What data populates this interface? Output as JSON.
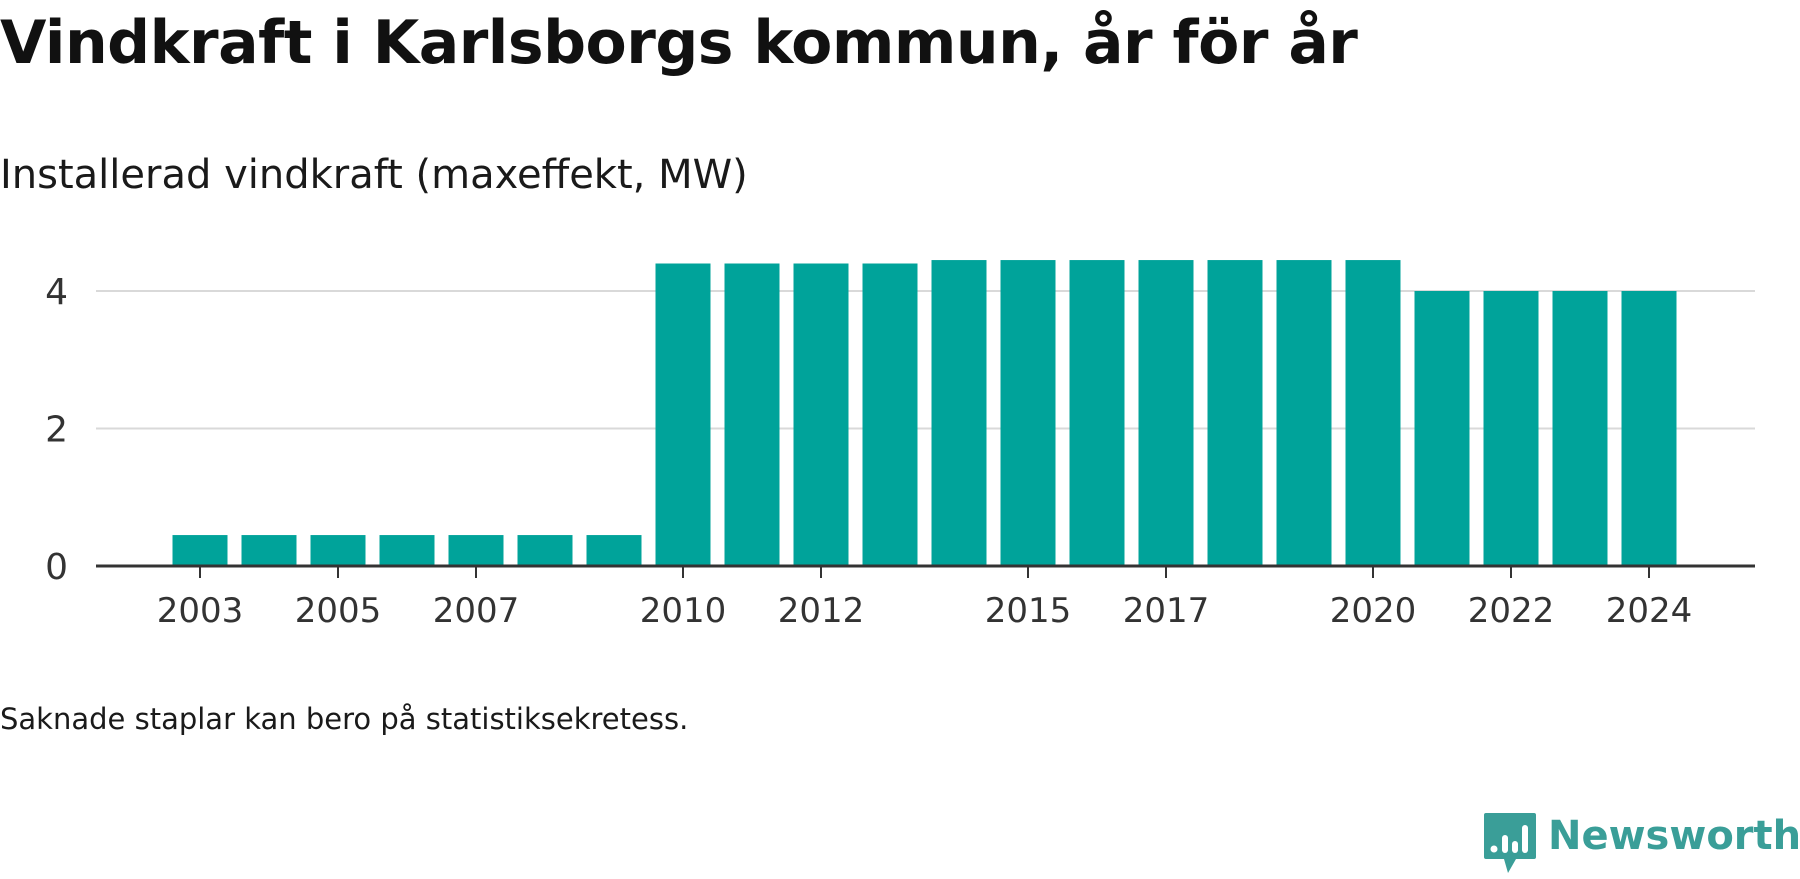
{
  "header": {
    "title": "Vindkraft i Karlsborgs kommun, år för år",
    "subtitle": "Installerad vindkraft (maxeffekt, MW)"
  },
  "footer": {
    "note": "Saknade staplar kan bero på statistiksekretess.",
    "brand": "Newsworthy"
  },
  "colors": {
    "bar": "#00a39a",
    "grid": "#d9d9d9",
    "axis": "#333333",
    "brand": "#3a9e98"
  },
  "chart_data": {
    "type": "bar",
    "title": "Vindkraft i Karlsborgs kommun, år för år",
    "subtitle": "Installerad vindkraft (maxeffekt, MW)",
    "categories": [
      2003,
      2004,
      2005,
      2006,
      2007,
      2008,
      2009,
      2010,
      2011,
      2012,
      2013,
      2014,
      2015,
      2016,
      2017,
      2018,
      2019,
      2020,
      2021,
      2022,
      2023,
      2024
    ],
    "values": [
      0.45,
      0.45,
      0.45,
      0.45,
      0.45,
      0.45,
      0.45,
      4.4,
      4.4,
      4.4,
      4.4,
      4.45,
      4.45,
      4.45,
      4.45,
      4.45,
      4.45,
      4.45,
      4.0,
      4.0,
      4.0,
      4.0
    ],
    "x_tick_labels": [
      "2003",
      "2005",
      "2007",
      "2010",
      "2012",
      "2015",
      "2017",
      "2020",
      "2022",
      "2024"
    ],
    "y_ticks": [
      0,
      2,
      4
    ],
    "ylim": [
      0,
      4.8
    ],
    "xlabel": "",
    "ylabel": "",
    "grid": true,
    "legend": "none"
  }
}
